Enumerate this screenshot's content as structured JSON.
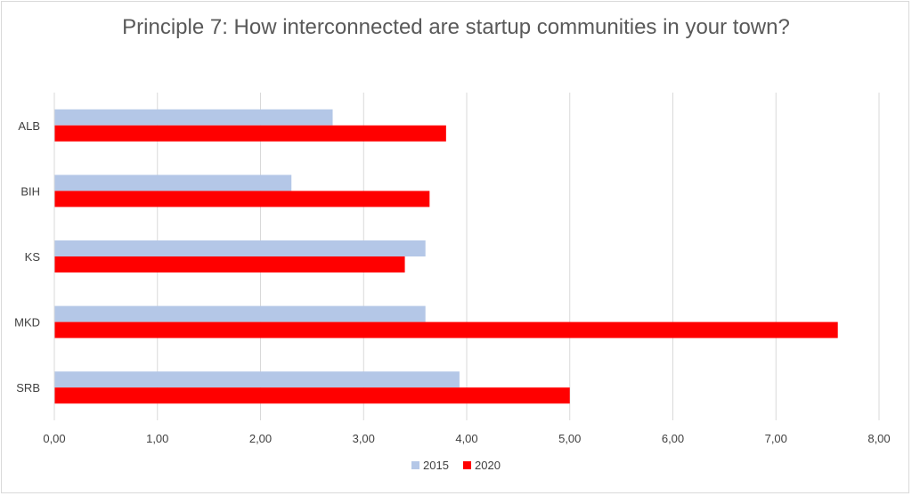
{
  "chart_data": {
    "type": "bar",
    "orientation": "horizontal",
    "title": "Principle 7: How interconnected are startup communities in your town?",
    "categories": [
      "ALB",
      "BIH",
      "KS",
      "MKD",
      "SRB"
    ],
    "series": [
      {
        "name": "2015",
        "color": "#b4c7e7",
        "values": [
          2.7,
          2.3,
          3.6,
          3.6,
          3.93
        ]
      },
      {
        "name": "2020",
        "color": "#ff0000",
        "values": [
          3.8,
          3.64,
          3.4,
          7.6,
          5.0
        ]
      }
    ],
    "xlim": [
      0,
      8
    ],
    "xticks": [
      "0,00",
      "1,00",
      "2,00",
      "3,00",
      "4,00",
      "5,00",
      "6,00",
      "7,00",
      "8,00"
    ],
    "grid": "vertical",
    "legend_position": "bottom"
  }
}
